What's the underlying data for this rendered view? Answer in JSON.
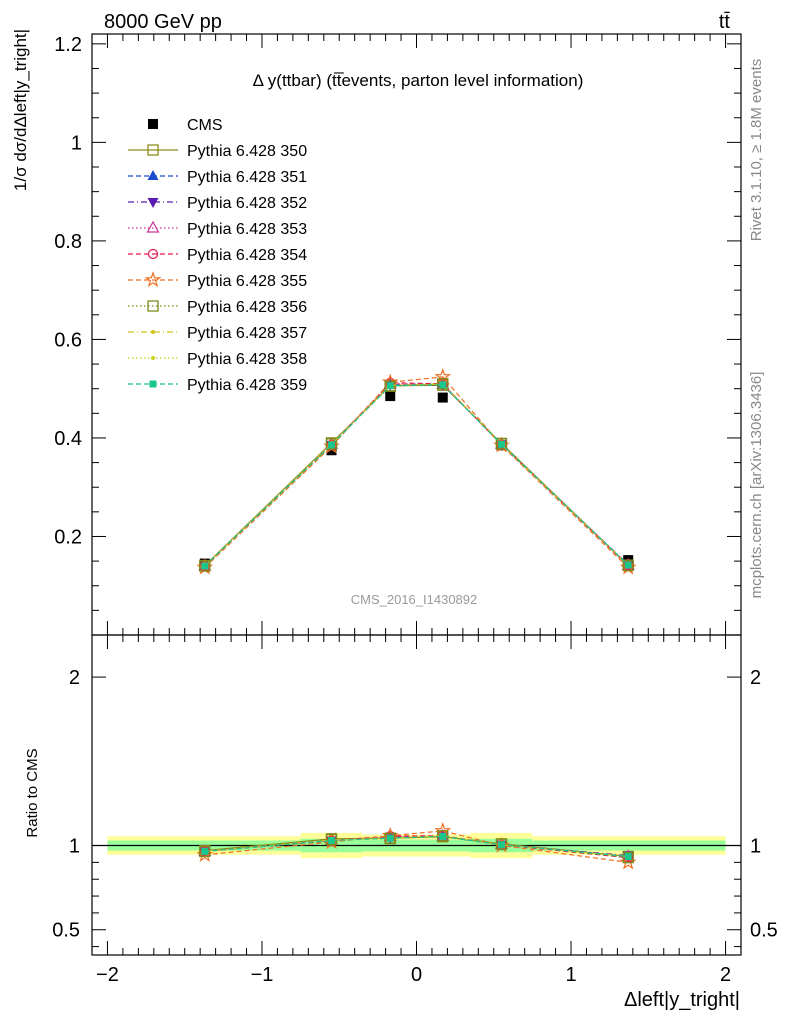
{
  "header": {
    "energy": "8000 GeV pp",
    "process": "tt̄",
    "plot_title": "Δ y(ttbar) (tt̅events, parton level information)",
    "watermark": "CMS_2016_I1430892",
    "side_rivet": "Rivet 3.1.10, ≥ 1.8M events",
    "side_mcplots": "mcplots.cern.ch [arXiv:1306.3436]"
  },
  "axes": {
    "main_ylabel": "1/σ dσ/dΔleft|y_tright|",
    "ratio_ylabel": "Ratio to CMS",
    "xlabel": "Δleft|y_tright|"
  },
  "colors": {
    "cms": "#000000",
    "band_outer": "#ffff99",
    "band_inner": "#99ff99"
  },
  "chart_data": [
    {
      "type": "line",
      "panel": "main",
      "xlim": [
        -2.1,
        2.1
      ],
      "ylim": [
        0,
        1.22
      ],
      "x_ticks": [
        -2,
        -1,
        0,
        1,
        2
      ],
      "y_ticks": [
        0.2,
        0.4,
        0.6,
        0.8,
        1,
        1.2
      ],
      "y_tick_labels": [
        "0.2",
        "0.4",
        "0.6",
        "0.8",
        "1",
        "1.2"
      ],
      "x": [
        -1.37,
        -0.55,
        -0.17,
        0.17,
        0.55,
        1.37
      ],
      "legend_position": "top-left",
      "series": [
        {
          "name": "CMS",
          "color": "#000000",
          "marker": "filled-square",
          "line": "none",
          "values": [
            0.145,
            0.375,
            0.485,
            0.482,
            0.385,
            0.152
          ]
        },
        {
          "name": "Pythia 6.428 350",
          "color": "#8c8c1a",
          "marker": "open-square",
          "line": "solid",
          "values": [
            0.141,
            0.39,
            0.506,
            0.507,
            0.389,
            0.142
          ]
        },
        {
          "name": "Pythia 6.428 351",
          "color": "#1a4dcc",
          "marker": "filled-triangle-up",
          "line": "dashed",
          "values": [
            0.14,
            0.386,
            0.508,
            0.508,
            0.387,
            0.142
          ]
        },
        {
          "name": "Pythia 6.428 352",
          "color": "#5a1ab3",
          "marker": "filled-triangle-down",
          "line": "dashdot",
          "values": [
            0.14,
            0.386,
            0.508,
            0.508,
            0.387,
            0.143
          ]
        },
        {
          "name": "Pythia 6.428 353",
          "color": "#cc3399",
          "marker": "open-triangle-up",
          "line": "dotted",
          "values": [
            0.14,
            0.387,
            0.51,
            0.509,
            0.387,
            0.142
          ]
        },
        {
          "name": "Pythia 6.428 354",
          "color": "#e6194b",
          "marker": "open-circle",
          "line": "dashed",
          "values": [
            0.14,
            0.386,
            0.512,
            0.51,
            0.386,
            0.141
          ]
        },
        {
          "name": "Pythia 6.428 355",
          "color": "#f07020",
          "marker": "open-star",
          "line": "dashed",
          "values": [
            0.137,
            0.383,
            0.513,
            0.524,
            0.385,
            0.137
          ]
        },
        {
          "name": "Pythia 6.428 356",
          "color": "#7a8c1a",
          "marker": "open-square",
          "line": "dotted",
          "values": [
            0.14,
            0.388,
            0.505,
            0.51,
            0.388,
            0.141
          ]
        },
        {
          "name": "Pythia 6.428 357",
          "color": "#d4c21a",
          "marker": "small-dot",
          "line": "dashdot",
          "values": [
            0.14,
            0.387,
            0.507,
            0.509,
            0.387,
            0.142
          ]
        },
        {
          "name": "Pythia 6.428 358",
          "color": "#c8d41a",
          "marker": "small-dot",
          "line": "dotted",
          "values": [
            0.14,
            0.387,
            0.507,
            0.509,
            0.387,
            0.142
          ]
        },
        {
          "name": "Pythia 6.428 359",
          "color": "#1ac88c",
          "marker": "filled-square-small",
          "line": "dashed",
          "values": [
            0.14,
            0.386,
            0.506,
            0.508,
            0.387,
            0.142
          ]
        }
      ]
    },
    {
      "type": "line",
      "panel": "ratio",
      "xlim": [
        -2.1,
        2.1
      ],
      "ylim": [
        0.35,
        2.25
      ],
      "x_ticks": [
        -2,
        -1,
        0,
        1,
        2
      ],
      "x_tick_labels": [
        "−2",
        "−1",
        "0",
        "1",
        "2"
      ],
      "y_ticks": [
        0.5,
        1,
        2
      ],
      "y_tick_labels": [
        "0.5",
        "1",
        "2"
      ],
      "x_edges": [
        -2.0,
        -0.75,
        -0.35,
        0,
        0.35,
        0.75,
        2.0
      ],
      "band_outer_halfwidth": [
        0.055,
        0.075,
        0.065,
        0.065,
        0.075,
        0.055
      ],
      "band_inner_halfwidth": [
        0.03,
        0.04,
        0.035,
        0.035,
        0.04,
        0.03
      ],
      "series": [
        {
          "name": "Pythia 6.428 350",
          "values": [
            0.97,
            1.04,
            1.044,
            1.052,
            1.01,
            0.935
          ]
        },
        {
          "name": "Pythia 6.428 351",
          "values": [
            0.965,
            1.03,
            1.048,
            1.054,
            1.005,
            0.935
          ]
        },
        {
          "name": "Pythia 6.428 352",
          "values": [
            0.965,
            1.03,
            1.048,
            1.054,
            1.005,
            0.94
          ]
        },
        {
          "name": "Pythia 6.428 353",
          "values": [
            0.965,
            1.032,
            1.052,
            1.056,
            1.005,
            0.935
          ]
        },
        {
          "name": "Pythia 6.428 354",
          "values": [
            0.965,
            1.03,
            1.056,
            1.058,
            1.003,
            0.928
          ]
        },
        {
          "name": "Pythia 6.428 355",
          "values": [
            0.945,
            1.021,
            1.058,
            1.087,
            1.0,
            0.9
          ]
        },
        {
          "name": "Pythia 6.428 356",
          "values": [
            0.965,
            1.035,
            1.041,
            1.058,
            1.008,
            0.928
          ]
        },
        {
          "name": "Pythia 6.428 357",
          "values": [
            0.965,
            1.032,
            1.045,
            1.056,
            1.005,
            0.935
          ]
        },
        {
          "name": "Pythia 6.428 358",
          "values": [
            0.965,
            1.032,
            1.045,
            1.056,
            1.005,
            0.935
          ]
        },
        {
          "name": "Pythia 6.428 359",
          "values": [
            0.965,
            1.03,
            1.043,
            1.054,
            1.005,
            0.935
          ]
        }
      ]
    }
  ]
}
